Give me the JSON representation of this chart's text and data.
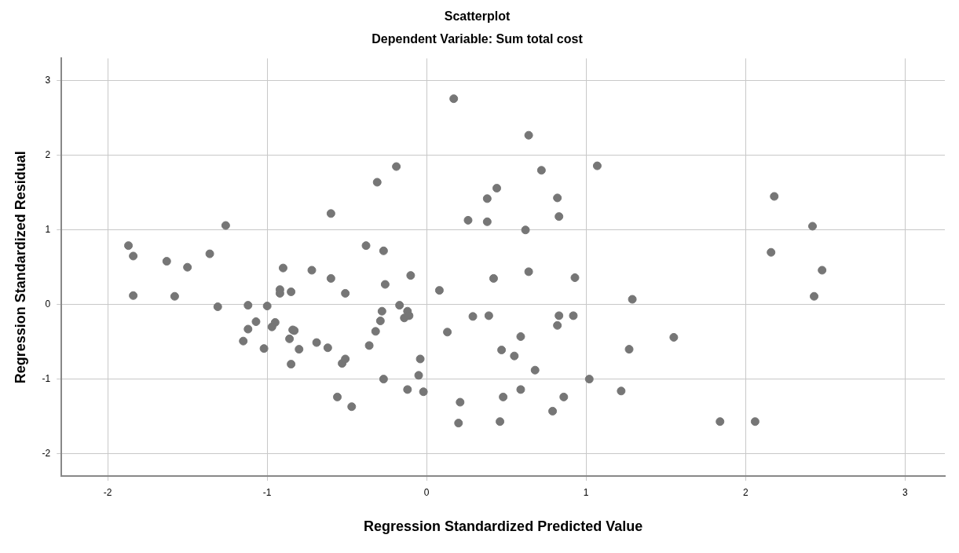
{
  "chart_data": {
    "type": "scatter",
    "title": "Scatterplot",
    "subtitle": "Dependent Variable: Sum total cost",
    "xlabel": "Regression Standardized Predicted Value",
    "ylabel": "Regression Standardized Residual",
    "xlim": [
      -2.29,
      3.25
    ],
    "ylim": [
      -2.3,
      3.3
    ],
    "xticks": [
      -2,
      -1,
      0,
      1,
      2,
      3
    ],
    "yticks": [
      -2,
      -1,
      0,
      1,
      2,
      3
    ],
    "grid": true,
    "marker": "circle",
    "legend": false,
    "series": [
      {
        "color": "#767676",
        "x": [
          -1.87,
          -1.84,
          -1.84,
          -1.63,
          -1.58,
          -1.5,
          -1.36,
          -1.26,
          -1.31,
          -1.12,
          -1.0,
          -1.07,
          -1.12,
          -1.15,
          -1.02,
          -0.9,
          -0.92,
          -0.92,
          -0.85,
          -0.95,
          -0.97,
          -0.84,
          -0.86,
          -0.85,
          -0.83,
          -0.8,
          -0.72,
          -0.69,
          -0.62,
          -0.6,
          -0.6,
          -0.56,
          -0.53,
          -0.51,
          -0.51,
          -0.47,
          -0.38,
          -0.36,
          -0.32,
          -0.29,
          -0.31,
          -0.28,
          -0.27,
          -0.27,
          -0.26,
          -0.19,
          -0.17,
          -0.14,
          -0.12,
          -0.12,
          -0.11,
          -0.1,
          -0.04,
          -0.05,
          -0.02,
          0.08,
          0.13,
          0.17,
          0.21,
          0.2,
          0.26,
          0.29,
          0.39,
          0.38,
          0.38,
          0.42,
          0.44,
          0.47,
          0.46,
          0.48,
          0.55,
          0.59,
          0.59,
          0.62,
          0.64,
          0.64,
          0.68,
          0.72,
          0.79,
          0.82,
          0.83,
          0.83,
          0.82,
          0.86,
          0.92,
          0.93,
          1.02,
          1.07,
          1.22,
          1.27,
          1.29,
          1.55,
          1.84,
          2.06,
          2.16,
          2.18,
          2.42,
          2.43,
          2.48
        ],
        "values": [
          0.79,
          0.65,
          0.12,
          0.58,
          0.11,
          0.5,
          0.68,
          1.06,
          -0.03,
          -0.01,
          -0.02,
          -0.23,
          -0.33,
          -0.49,
          -0.59,
          0.49,
          0.2,
          0.15,
          0.17,
          -0.24,
          -0.3,
          -0.34,
          -0.46,
          -0.8,
          -0.35,
          -0.6,
          0.46,
          -0.51,
          -0.58,
          1.22,
          0.35,
          -1.24,
          -0.79,
          -0.73,
          0.15,
          -1.37,
          0.79,
          -0.55,
          -0.36,
          -0.22,
          1.64,
          -0.09,
          0.72,
          -1.0,
          0.27,
          1.85,
          -0.01,
          -0.18,
          -0.09,
          -1.14,
          -0.15,
          0.39,
          -0.73,
          -0.95,
          -1.17,
          0.19,
          -0.37,
          2.76,
          -1.31,
          -1.59,
          1.13,
          -0.16,
          -0.15,
          1.42,
          1.11,
          0.35,
          1.56,
          -0.61,
          -1.57,
          -1.24,
          -0.69,
          -0.43,
          -1.14,
          1.0,
          0.44,
          2.27,
          -0.88,
          1.8,
          -1.43,
          1.43,
          1.18,
          -0.15,
          -0.28,
          -1.24,
          -0.15,
          0.36,
          -1.0,
          1.86,
          -1.16,
          -0.6,
          0.07,
          -0.44,
          -1.57,
          -1.57,
          0.7,
          1.45,
          1.05,
          0.11,
          0.46
        ]
      }
    ]
  }
}
